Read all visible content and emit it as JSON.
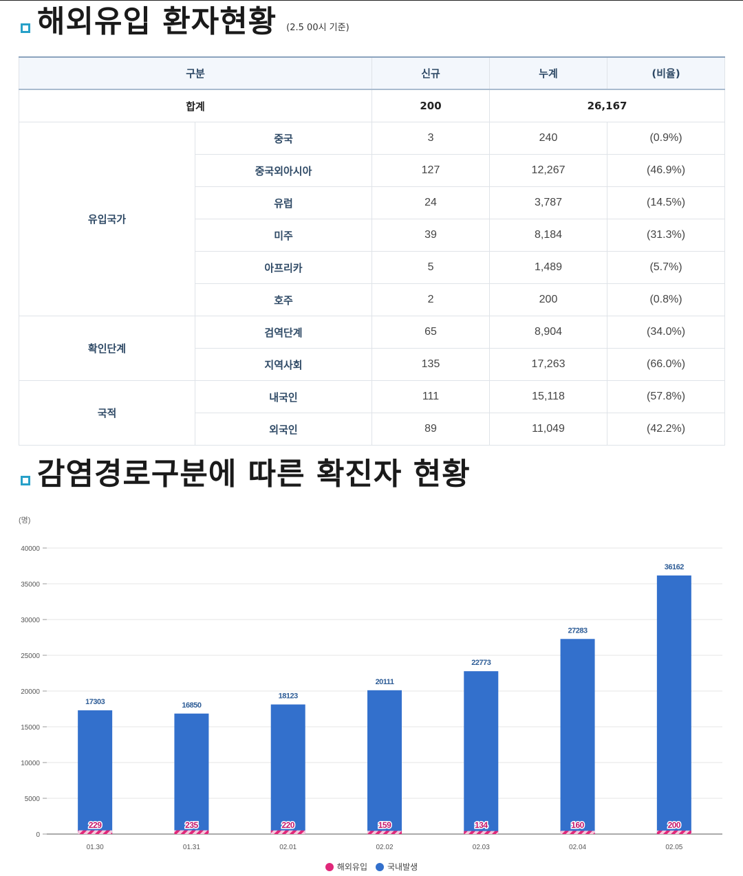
{
  "section1": {
    "title": "해외유입 환자현황",
    "note": "(2.5 00시 기준)"
  },
  "table": {
    "headers": [
      "구분",
      "신규",
      "누계",
      "(비율)"
    ],
    "total": {
      "label": "합계",
      "new": "200",
      "cumulative": "26,167"
    },
    "groups": [
      {
        "name": "유입국가",
        "rows": [
          {
            "label": "중국",
            "new": "3",
            "cumulative": "240",
            "ratio": "(0.9%)"
          },
          {
            "label": "중국외아시아",
            "new": "127",
            "cumulative": "12,267",
            "ratio": "(46.9%)"
          },
          {
            "label": "유럽",
            "new": "24",
            "cumulative": "3,787",
            "ratio": "(14.5%)"
          },
          {
            "label": "미주",
            "new": "39",
            "cumulative": "8,184",
            "ratio": "(31.3%)"
          },
          {
            "label": "아프리카",
            "new": "5",
            "cumulative": "1,489",
            "ratio": "(5.7%)"
          },
          {
            "label": "호주",
            "new": "2",
            "cumulative": "200",
            "ratio": "(0.8%)"
          }
        ]
      },
      {
        "name": "확인단계",
        "rows": [
          {
            "label": "검역단계",
            "new": "65",
            "cumulative": "8,904",
            "ratio": "(34.0%)"
          },
          {
            "label": "지역사회",
            "new": "135",
            "cumulative": "17,263",
            "ratio": "(66.0%)"
          }
        ]
      },
      {
        "name": "국적",
        "rows": [
          {
            "label": "내국인",
            "new": "111",
            "cumulative": "15,118",
            "ratio": "(57.8%)"
          },
          {
            "label": "외국인",
            "new": "89",
            "cumulative": "11,049",
            "ratio": "(42.2%)"
          }
        ]
      }
    ]
  },
  "section2": {
    "title": "감염경로구분에 따른 확진자 현황"
  },
  "colors": {
    "accent": "#27a0c8",
    "domestic": "#3370cc",
    "imported": "#e0287a",
    "header_text": "#2f4a66"
  },
  "chart_data": {
    "type": "bar",
    "stacked": true,
    "unit_label": "(명)",
    "categories": [
      "01.30",
      "01.31",
      "02.01",
      "02.02",
      "02.03",
      "02.04",
      "02.05"
    ],
    "series": [
      {
        "name": "해외유입",
        "values": [
          229,
          235,
          220,
          159,
          134,
          160,
          200
        ]
      },
      {
        "name": "국내발생",
        "values": [
          17303,
          16850,
          18123,
          20111,
          22773,
          27283,
          36162
        ]
      }
    ],
    "ylim": [
      0,
      40000
    ],
    "yticks": [
      0,
      5000,
      10000,
      15000,
      20000,
      25000,
      30000,
      35000,
      40000
    ],
    "grid": true,
    "legend_position": "bottom"
  }
}
